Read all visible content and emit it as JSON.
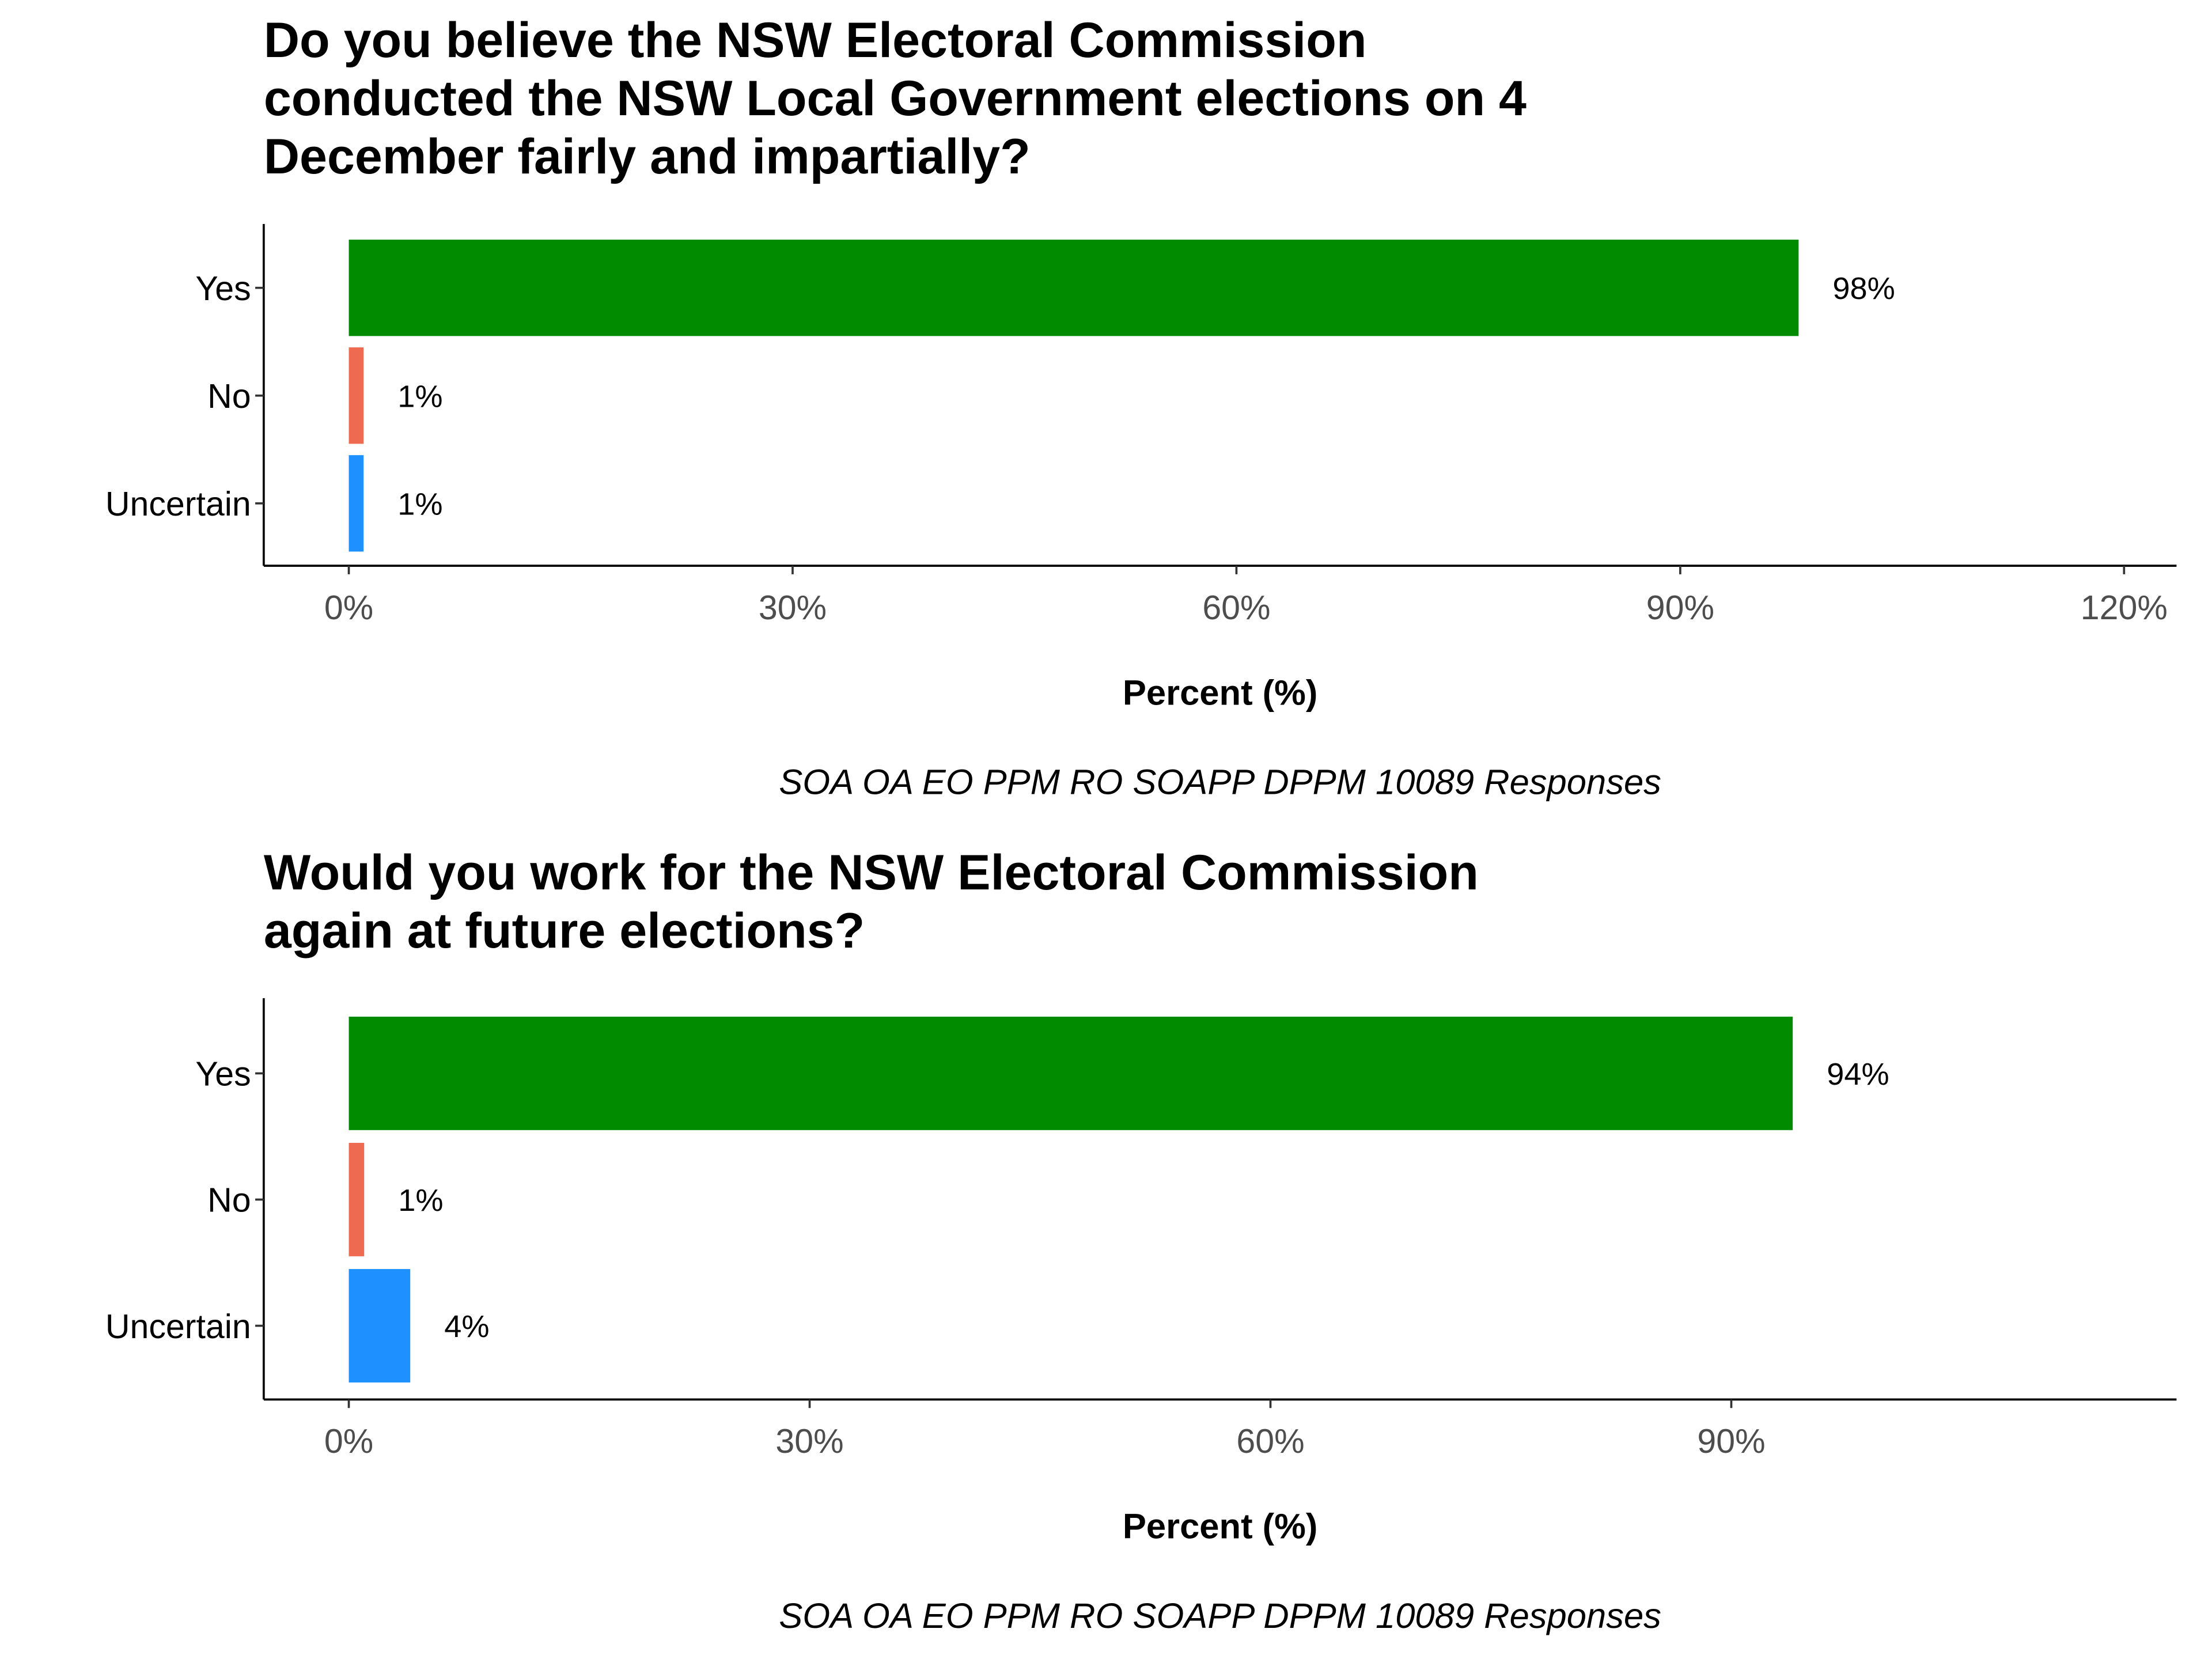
{
  "chart_data": [
    {
      "type": "bar",
      "orientation": "horizontal",
      "title": "Do you believe the NSW Electoral Commission conducted the NSW Local Government elections on 4 December fairly and impartially?",
      "title_lines": [
        "Do you believe the NSW Electoral Commission",
        "conducted the NSW Local Government elections on 4",
        "December fairly and impartially?"
      ],
      "categories": [
        "Yes",
        "No",
        "Uncertain"
      ],
      "values": [
        98,
        1,
        1
      ],
      "data_labels": [
        "98%",
        "1%",
        "1%"
      ],
      "colors": [
        "#008b00",
        "#ee6a50",
        "#1e90ff"
      ],
      "xlabel": "Percent (%)",
      "ylabel": "",
      "xlim": [
        0,
        120
      ],
      "xticks": [
        0,
        30,
        60,
        90,
        120
      ],
      "xtick_labels": [
        "0%",
        "30%",
        "60%",
        "90%",
        "120%"
      ],
      "caption": "SOA OA EO PPM RO SOAPP DPPM 10089 Responses",
      "grid": false,
      "legend": "none"
    },
    {
      "type": "bar",
      "orientation": "horizontal",
      "title": "Would you work for the NSW Electoral Commission again at future elections?",
      "title_lines": [
        "Would you work for the NSW Electoral Commission",
        "again at future elections?"
      ],
      "categories": [
        "Yes",
        "No",
        "Uncertain"
      ],
      "values": [
        94,
        1,
        4
      ],
      "data_labels": [
        "94%",
        "1%",
        "4%"
      ],
      "colors": [
        "#008b00",
        "#ee6a50",
        "#1e90ff"
      ],
      "xlabel": "Percent (%)",
      "ylabel": "",
      "xlim": [
        0,
        110
      ],
      "xticks": [
        0,
        30,
        60,
        90
      ],
      "xtick_labels": [
        "0%",
        "30%",
        "60%",
        "90%"
      ],
      "caption": "SOA OA EO PPM RO SOAPP DPPM 10089 Responses",
      "grid": false,
      "legend": "none"
    }
  ]
}
